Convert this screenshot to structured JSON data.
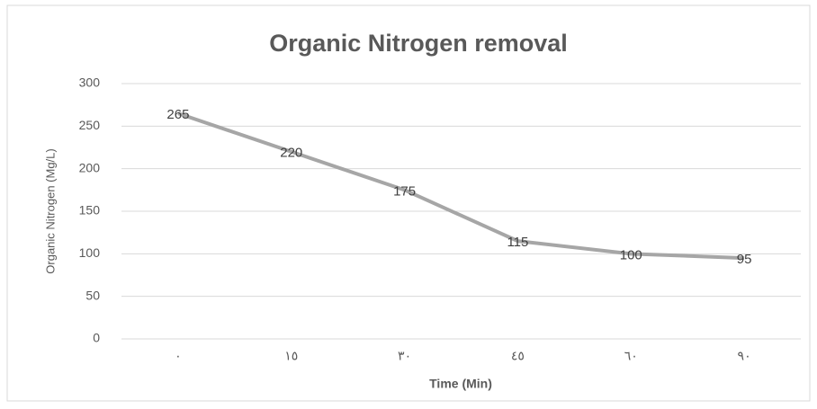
{
  "chart_data": {
    "type": "line",
    "title": "Organic Nitrogen removal",
    "x_label": "Time (Min)",
    "y_label": "Organic Nitrogen (Mg/L)",
    "categories": [
      "٠",
      "١٥",
      "٣٠",
      "٤٥",
      "٦٠",
      "٩٠"
    ],
    "values": [
      265,
      220,
      175,
      115,
      100,
      95
    ],
    "color": "#a6a6a6",
    "ylim": [
      0,
      300
    ],
    "yticks": [
      0,
      50,
      100,
      150,
      200,
      250,
      300
    ],
    "grid": true
  }
}
